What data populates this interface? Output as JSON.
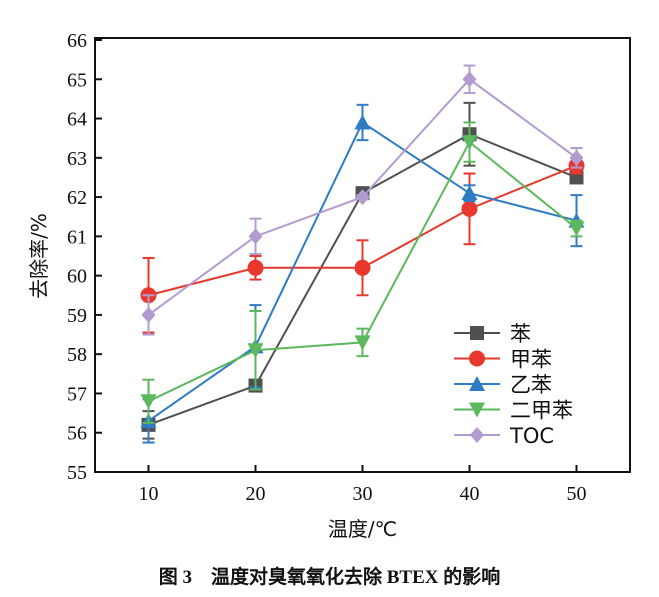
{
  "chart_data": {
    "type": "line",
    "xlabel": "温度/℃",
    "ylabel": "去除率/%",
    "caption": "图 3　温度对臭氧氧化去除 BTEX 的影响",
    "x": [
      10,
      20,
      30,
      40,
      50
    ],
    "xticks": [
      10,
      20,
      30,
      40,
      50
    ],
    "yticks": [
      55,
      56,
      57,
      58,
      59,
      60,
      61,
      62,
      63,
      64,
      65,
      66
    ],
    "xlim": [
      5,
      55
    ],
    "ylim": [
      55,
      66
    ],
    "grid": false,
    "legend_position": "bottom-right",
    "series": [
      {
        "name": "苯",
        "marker": "square",
        "color": "#505050",
        "values": [
          56.2,
          57.2,
          62.1,
          63.6,
          62.5
        ],
        "errors": [
          0.35,
          0.1,
          0.05,
          0.8,
          0.1
        ]
      },
      {
        "name": "甲苯",
        "marker": "circle",
        "color": "#e8372c",
        "values": [
          59.5,
          60.2,
          60.2,
          61.7,
          62.8
        ],
        "errors": [
          0.95,
          0.3,
          0.7,
          0.9,
          0.2
        ]
      },
      {
        "name": "乙苯",
        "marker": "triangle-up",
        "color": "#2f7bc4",
        "values": [
          56.3,
          58.2,
          63.9,
          62.1,
          61.4
        ],
        "errors": [
          0.55,
          1.05,
          0.45,
          0.2,
          0.65
        ]
      },
      {
        "name": "二甲苯",
        "marker": "triangle-down",
        "color": "#5cb85c",
        "values": [
          56.8,
          58.1,
          58.3,
          63.4,
          61.2
        ],
        "errors": [
          0.55,
          1.0,
          0.35,
          0.5,
          0.2
        ]
      },
      {
        "name": "TOC",
        "marker": "diamond",
        "color": "#b39bd0",
        "values": [
          59.0,
          61.0,
          62.0,
          65.0,
          63.0
        ],
        "errors": [
          0.5,
          0.45,
          0.05,
          0.35,
          0.25
        ]
      }
    ]
  }
}
